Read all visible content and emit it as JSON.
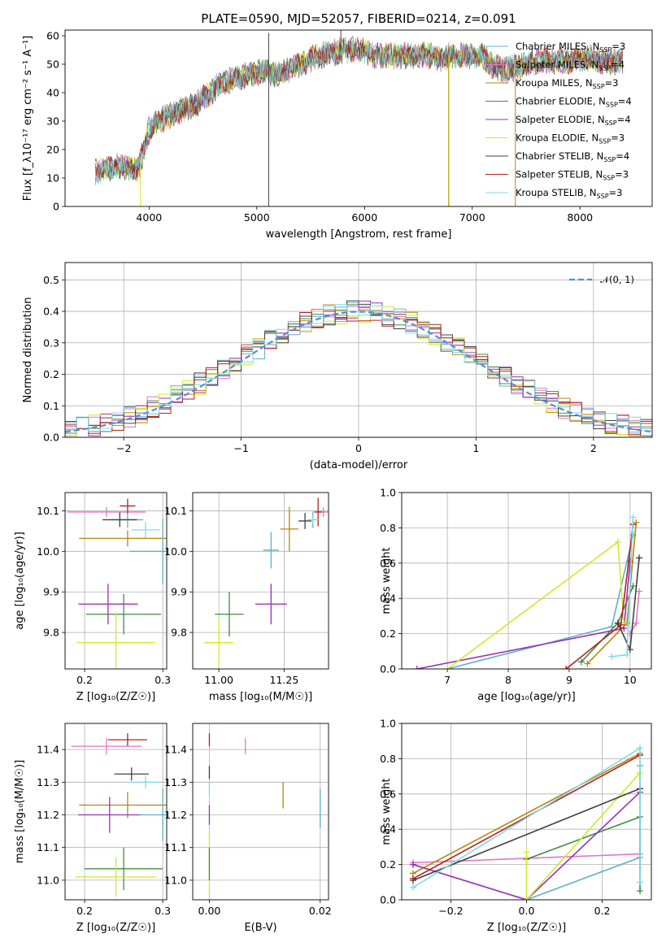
{
  "title": "PLATE=0590, MJD=52057, FIBERID=0214, z=0.091",
  "colors": {
    "series": [
      "#5fb1c8",
      "#e377c2",
      "#b8860b",
      "#3f8f3f",
      "#9b30b8",
      "#d4e82a",
      "#404040",
      "#b22222",
      "#7fdbe6"
    ],
    "normal_curve": "#5b8bd8",
    "grid": "#b0b0b0"
  },
  "chart_data": [
    {
      "type": "line",
      "name": "spectrum",
      "title": "PLATE=0590, MJD=52057, FIBERID=0214, z=0.091",
      "xlabel": "wavelength [Angstrom, rest frame]",
      "ylabel": "Flux [f_λ10⁻¹⁷ erg cm⁻² s⁻¹ A⁻¹]",
      "xlim": [
        3220,
        8670
      ],
      "ylim": [
        0,
        62
      ],
      "xticks": [
        4000,
        5000,
        6000,
        7000,
        8000
      ],
      "yticks": [
        0,
        10,
        20,
        30,
        40,
        50,
        60
      ],
      "grid": false,
      "legend_position": "top-right",
      "legend": [
        {
          "name": "Chabrier MILES",
          "nssp": "3"
        },
        {
          "name": "Salpeter MILES",
          "nssp": "4"
        },
        {
          "name": "Kroupa MILES",
          "nssp": "3"
        },
        {
          "name": "Chabrier ELODIE",
          "nssp": "4"
        },
        {
          "name": "Salpeter ELODIE",
          "nssp": "4"
        },
        {
          "name": "Kroupa ELODIE",
          "nssp": "3"
        },
        {
          "name": "Chabrier STELIB",
          "nssp": "4"
        },
        {
          "name": "Salpeter STELIB",
          "nssp": "3"
        },
        {
          "name": "Kroupa STELIB",
          "nssp": "3"
        }
      ],
      "continuum_x": [
        3500,
        3600,
        3700,
        3800,
        3900,
        4000,
        4100,
        4200,
        4300,
        4400,
        4500,
        4600,
        4700,
        4800,
        4900,
        5000,
        5100,
        5200,
        5300,
        5400,
        5500,
        5600,
        5700,
        5800,
        5900,
        6000,
        6100,
        6200,
        6300,
        6400,
        6500,
        6600,
        6700,
        6800,
        6900,
        7000,
        7100,
        7200,
        7300,
        7400,
        7500,
        7600,
        7700,
        7800,
        7900,
        8000,
        8100,
        8200,
        8300,
        8400
      ],
      "continuum_y": [
        12,
        13,
        14,
        14,
        13,
        27,
        30,
        32,
        34,
        35,
        38,
        41,
        44,
        45,
        46,
        47,
        47,
        46,
        48,
        50,
        52,
        53,
        54,
        55,
        55,
        55,
        53,
        53,
        53,
        53,
        53,
        53,
        52,
        53,
        53,
        53,
        53,
        49,
        48,
        49,
        50,
        51,
        51,
        51,
        51,
        52,
        52,
        51,
        51,
        51
      ],
      "spikes": [
        {
          "x": 3920,
          "y0": 14,
          "y1": 0,
          "series": 5
        },
        {
          "x": 5110,
          "y0": 47,
          "y1": 0,
          "series": 6
        },
        {
          "x": 5110,
          "y0": 47,
          "y1": 61,
          "series": 6
        },
        {
          "x": 5780,
          "y0": 55,
          "y1": 62,
          "series": 6
        },
        {
          "x": 6780,
          "y0": 53,
          "y1": 0,
          "series": 2
        },
        {
          "x": 6785,
          "y0": 53,
          "y1": 0,
          "series": 5
        },
        {
          "x": 7400,
          "y0": 48,
          "y1": 0,
          "series": 2
        }
      ]
    },
    {
      "type": "histogram",
      "name": "residuals",
      "xlabel": "(data-model)/error",
      "ylabel": "Normed distribution",
      "xlim": [
        -2.5,
        2.5
      ],
      "ylim": [
        0,
        0.555
      ],
      "xticks": [
        -2,
        -1,
        0,
        1,
        2
      ],
      "yticks": [
        0.0,
        0.1,
        0.2,
        0.3,
        0.4,
        0.5
      ],
      "grid": true,
      "legend_position": "top-right",
      "normal_label": "𝒩(0, 1)",
      "bin_width": 0.1
    },
    {
      "type": "scatter",
      "name": "age-vs-Z",
      "xlabel": "Z [log₁₀(Z/Z☉)]",
      "ylabel": "age  [log₁₀(age/yr)]",
      "xlim": [
        0.175,
        0.305
      ],
      "ylim": [
        9.71,
        10.145
      ],
      "xticks": [
        0.2,
        0.3
      ],
      "xticklabels": [
        "0.2",
        "0.3"
      ],
      "yticks": [
        9.8,
        9.9,
        10.0,
        10.1
      ],
      "grid": true,
      "points": [
        {
          "x": 0.255,
          "y": 10.078,
          "xerr": 0.02,
          "yerr": 0.02,
          "series": 0
        },
        {
          "x": 0.228,
          "y": 10.097,
          "xerr": 0.05,
          "yerr": 0.012,
          "series": 1
        },
        {
          "x": 0.255,
          "y": 10.032,
          "xerr": 0.062,
          "yerr": 0.02,
          "series": 2
        },
        {
          "x": 0.25,
          "y": 9.845,
          "xerr": 0.048,
          "yerr": 0.05,
          "series": 3
        },
        {
          "x": 0.23,
          "y": 9.87,
          "xerr": 0.038,
          "yerr": 0.05,
          "series": 4
        },
        {
          "x": 0.24,
          "y": 9.775,
          "xerr": 0.05,
          "yerr": 0.075,
          "series": 5
        },
        {
          "x": 0.245,
          "y": 10.078,
          "xerr": 0.022,
          "yerr": 0.018,
          "series": 6
        },
        {
          "x": 0.255,
          "y": 10.112,
          "xerr": 0.01,
          "yerr": 0.018,
          "series": 7
        },
        {
          "x": 0.278,
          "y": 10.053,
          "xerr": 0.018,
          "yerr": 0.02,
          "series": 8
        },
        {
          "x": 0.3,
          "y": 10.0,
          "xerr": 0.042,
          "yerr": 0.08,
          "series": 0
        }
      ]
    },
    {
      "type": "scatter",
      "name": "age-vs-mass",
      "xlabel": "mass [log₁₀(M/M☉)]",
      "ylabel": "",
      "xlim": [
        10.9,
        11.42
      ],
      "ylim": [
        9.71,
        10.145
      ],
      "xticks": [
        11.0,
        11.25
      ],
      "xticklabels": [
        "11.00",
        "11.25"
      ],
      "yticks": [
        9.8,
        9.9,
        10.0,
        10.1
      ],
      "grid": true,
      "points": [
        {
          "x": 11.36,
          "y": 10.078,
          "xerr": 0.02,
          "yerr": 0.02,
          "series": 0
        },
        {
          "x": 11.4,
          "y": 10.097,
          "xerr": 0.02,
          "yerr": 0.012,
          "series": 1
        },
        {
          "x": 11.27,
          "y": 10.055,
          "xerr": 0.035,
          "yerr": 0.055,
          "series": 2
        },
        {
          "x": 11.04,
          "y": 9.845,
          "xerr": 0.055,
          "yerr": 0.055,
          "series": 3
        },
        {
          "x": 11.2,
          "y": 9.87,
          "xerr": 0.06,
          "yerr": 0.05,
          "series": 4
        },
        {
          "x": 11.0,
          "y": 9.775,
          "xerr": 0.055,
          "yerr": 0.06,
          "series": 5
        },
        {
          "x": 11.33,
          "y": 10.075,
          "xerr": 0.025,
          "yerr": 0.02,
          "series": 6
        },
        {
          "x": 11.38,
          "y": 10.097,
          "xerr": 0.015,
          "yerr": 0.035,
          "series": 7
        },
        {
          "x": 11.36,
          "y": 10.078,
          "xerr": 0.02,
          "yerr": 0.01,
          "series": 8
        },
        {
          "x": 11.2,
          "y": 10.003,
          "xerr": 0.03,
          "yerr": 0.045,
          "series": 0
        }
      ]
    },
    {
      "type": "line",
      "name": "mass-weight-vs-age",
      "xlabel": "age  [log₁₀(age/yr)]",
      "ylabel": "mass weight",
      "xlim": [
        6.25,
        10.35
      ],
      "ylim": [
        0,
        1.0
      ],
      "xticks": [
        7,
        8,
        9,
        10
      ],
      "yticks": [
        0.0,
        0.2,
        0.4,
        0.6,
        0.8,
        1.0
      ],
      "grid": true,
      "series": [
        {
          "series": 0,
          "points": [
            [
              7.0,
              0.0
            ],
            [
              9.7,
              0.24
            ],
            [
              10.05,
              0.76
            ]
          ]
        },
        {
          "series": 1,
          "points": [
            [
              10.0,
              0.2
            ],
            [
              10.1,
              0.26
            ],
            [
              10.15,
              0.44
            ]
          ]
        },
        {
          "series": 2,
          "points": [
            [
              9.3,
              0.03
            ],
            [
              9.95,
              0.26
            ],
            [
              10.1,
              0.83
            ]
          ]
        },
        {
          "series": 3,
          "points": [
            [
              9.2,
              0.04
            ],
            [
              9.8,
              0.26
            ],
            [
              10.05,
              0.47
            ]
          ]
        },
        {
          "series": 4,
          "points": [
            [
              6.5,
              0.0
            ],
            [
              9.9,
              0.23
            ],
            [
              10.0,
              0.61
            ]
          ]
        },
        {
          "series": 5,
          "points": [
            [
              7.0,
              0.0
            ],
            [
              9.8,
              0.72
            ],
            [
              9.9,
              0.26
            ]
          ]
        },
        {
          "series": 6,
          "points": [
            [
              9.8,
              0.26
            ],
            [
              10.0,
              0.11
            ],
            [
              10.15,
              0.63
            ]
          ]
        },
        {
          "series": 7,
          "points": [
            [
              8.95,
              0.0
            ],
            [
              9.85,
              0.25
            ],
            [
              10.05,
              0.82
            ]
          ]
        },
        {
          "series": 8,
          "points": [
            [
              9.7,
              0.07
            ],
            [
              9.95,
              0.08
            ],
            [
              10.05,
              0.86
            ]
          ]
        }
      ]
    },
    {
      "type": "scatter",
      "name": "mass-vs-Z",
      "xlabel": "Z [log₁₀(Z/Z☉)]",
      "ylabel": "mass [log₁₀(M/M☉)]",
      "xlim": [
        0.175,
        0.305
      ],
      "ylim": [
        10.94,
        11.48
      ],
      "xticks": [
        0.2,
        0.3
      ],
      "xticklabels": [
        "0.2",
        "0.3"
      ],
      "yticks": [
        11.0,
        11.1,
        11.2,
        11.3,
        11.4
      ],
      "grid": true,
      "points": [
        {
          "x": 0.255,
          "y": 11.43,
          "xerr": 0.025,
          "yerr": 0.02,
          "series": 7
        },
        {
          "x": 0.228,
          "y": 11.41,
          "xerr": 0.045,
          "yerr": 0.025,
          "series": 1
        },
        {
          "x": 0.255,
          "y": 11.23,
          "xerr": 0.062,
          "yerr": 0.04,
          "series": 2
        },
        {
          "x": 0.25,
          "y": 11.035,
          "xerr": 0.05,
          "yerr": 0.065,
          "series": 3
        },
        {
          "x": 0.232,
          "y": 11.2,
          "xerr": 0.04,
          "yerr": 0.055,
          "series": 4
        },
        {
          "x": 0.24,
          "y": 11.01,
          "xerr": 0.052,
          "yerr": 0.06,
          "series": 5
        },
        {
          "x": 0.26,
          "y": 11.325,
          "xerr": 0.022,
          "yerr": 0.02,
          "series": 6
        },
        {
          "x": 0.278,
          "y": 11.3,
          "xerr": 0.02,
          "yerr": 0.02,
          "series": 8
        },
        {
          "x": 0.3,
          "y": 11.2,
          "xerr": 0.03,
          "yerr": 0.08,
          "series": 0
        }
      ]
    },
    {
      "type": "scatter",
      "name": "mass-vs-EBV",
      "xlabel": "E(B-V)",
      "ylabel": "",
      "xlim": [
        -0.003,
        0.0215
      ],
      "ylim": [
        10.94,
        11.48
      ],
      "xticks": [
        0.0,
        0.02
      ],
      "xticklabels": [
        "0.00",
        "0.02"
      ],
      "yticks": [
        11.0,
        11.1,
        11.2,
        11.3,
        11.4
      ],
      "grid": true,
      "points": [
        {
          "x": 0.0,
          "y": 11.43,
          "xerr": 0.0,
          "yerr": 0.02,
          "series": 7
        },
        {
          "x": 0.0065,
          "y": 11.41,
          "xerr": 0.0,
          "yerr": 0.025,
          "series": 1
        },
        {
          "x": 0.0133,
          "y": 11.26,
          "xerr": 0.0,
          "yerr": 0.04,
          "series": 2
        },
        {
          "x": 0.0,
          "y": 11.33,
          "xerr": 0.0,
          "yerr": 0.02,
          "series": 6
        },
        {
          "x": 0.0,
          "y": 11.2,
          "xerr": 0.0,
          "yerr": 0.03,
          "series": 4
        },
        {
          "x": 0.0,
          "y": 11.28,
          "xerr": 0.0,
          "yerr": 0.02,
          "series": 8
        },
        {
          "x": 0.0,
          "y": 11.05,
          "xerr": 0.0,
          "yerr": 0.1,
          "series": 5
        },
        {
          "x": 0.0,
          "y": 11.05,
          "xerr": 0.0,
          "yerr": 0.05,
          "series": 3
        },
        {
          "x": 0.02,
          "y": 11.22,
          "xerr": 0.0,
          "yerr": 0.06,
          "series": 0
        }
      ]
    },
    {
      "type": "line",
      "name": "mass-weight-vs-Z",
      "xlabel": "Z [log₁₀(Z/Z☉)]",
      "ylabel": "mass weight",
      "xlim": [
        -0.33,
        0.33
      ],
      "ylim": [
        0,
        1.0
      ],
      "xticks": [
        -0.2,
        0.0,
        0.2
      ],
      "xticklabels": [
        "−0.2",
        "0.0",
        "0.2"
      ],
      "yticks": [
        0.0,
        0.2,
        0.4,
        0.6,
        0.8,
        1.0
      ],
      "grid": true,
      "series": [
        {
          "series": 0,
          "points": [
            [
              -0.3,
              0.2
            ],
            [
              0.0,
              0.0
            ],
            [
              0.3,
              0.24
            ],
            [
              0.3,
              0.76
            ]
          ]
        },
        {
          "series": 1,
          "points": [
            [
              -0.3,
              0.21
            ],
            [
              0.3,
              0.26
            ]
          ]
        },
        {
          "series": 2,
          "points": [
            [
              -0.3,
              0.15
            ],
            [
              0.3,
              0.83
            ]
          ]
        },
        {
          "series": 3,
          "points": [
            [
              0.0,
              0.23
            ],
            [
              0.3,
              0.47
            ],
            [
              0.3,
              0.05
            ]
          ]
        },
        {
          "series": 4,
          "points": [
            [
              -0.3,
              0.2
            ],
            [
              0.0,
              0.0
            ],
            [
              0.3,
              0.61
            ]
          ]
        },
        {
          "series": 5,
          "points": [
            [
              0.0,
              0.27
            ],
            [
              0.0,
              0.0
            ],
            [
              0.3,
              0.72
            ]
          ]
        },
        {
          "series": 6,
          "points": [
            [
              -0.3,
              0.11
            ],
            [
              0.3,
              0.63
            ]
          ]
        },
        {
          "series": 7,
          "points": [
            [
              -0.3,
              0.12
            ],
            [
              0.3,
              0.82
            ]
          ]
        },
        {
          "series": 8,
          "points": [
            [
              -0.3,
              0.07
            ],
            [
              0.3,
              0.86
            ],
            [
              0.3,
              0.1
            ]
          ]
        }
      ]
    }
  ]
}
